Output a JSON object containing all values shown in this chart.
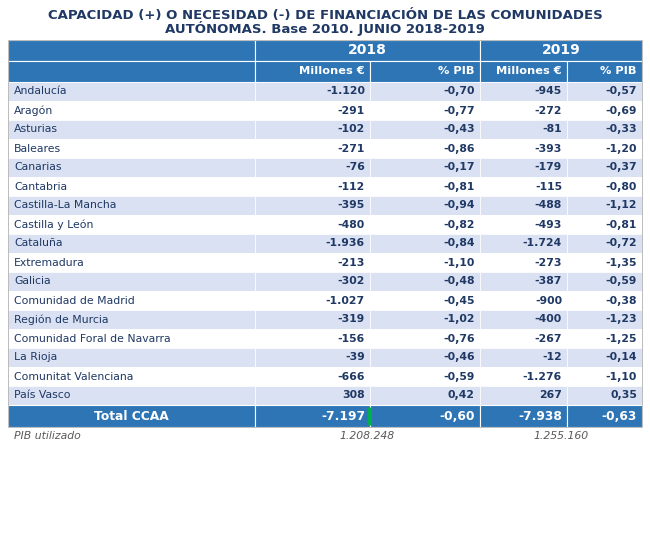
{
  "title_line1": "CAPACIDAD (+) O NECESIDAD (-) DE FINANCIACIÓN DE LAS COMUNIDADES",
  "title_line2": "AUTÓNOMAS. Base 2010. JUNIO 2018-2019",
  "sub_headers": [
    "",
    "Millones €",
    "% PIB",
    "Millones €",
    "% PIB"
  ],
  "rows": [
    [
      "Andalucía",
      "-1.120",
      "-0,70",
      "-945",
      "-0,57"
    ],
    [
      "Aragón",
      "-291",
      "-0,77",
      "-272",
      "-0,69"
    ],
    [
      "Asturias",
      "-102",
      "-0,43",
      "-81",
      "-0,33"
    ],
    [
      "Baleares",
      "-271",
      "-0,86",
      "-393",
      "-1,20"
    ],
    [
      "Canarias",
      "-76",
      "-0,17",
      "-179",
      "-0,37"
    ],
    [
      "Cantabria",
      "-112",
      "-0,81",
      "-115",
      "-0,80"
    ],
    [
      "Castilla-La Mancha",
      "-395",
      "-0,94",
      "-488",
      "-1,12"
    ],
    [
      "Castilla y León",
      "-480",
      "-0,82",
      "-493",
      "-0,81"
    ],
    [
      "Cataluña",
      "-1.936",
      "-0,84",
      "-1.724",
      "-0,72"
    ],
    [
      "Extremadura",
      "-213",
      "-1,10",
      "-273",
      "-1,35"
    ],
    [
      "Galicia",
      "-302",
      "-0,48",
      "-387",
      "-0,59"
    ],
    [
      "Comunidad de Madrid",
      "-1.027",
      "-0,45",
      "-900",
      "-0,38"
    ],
    [
      "Región de Murcia",
      "-319",
      "-1,02",
      "-400",
      "-1,23"
    ],
    [
      "Comunidad Foral de Navarra",
      "-156",
      "-0,76",
      "-267",
      "-1,25"
    ],
    [
      "La Rioja",
      "-39",
      "-0,46",
      "-12",
      "-0,14"
    ],
    [
      "Comunitat Valenciana",
      "-666",
      "-0,59",
      "-1.276",
      "-1,10"
    ],
    [
      "País Vasco",
      "308",
      "0,42",
      "267",
      "0,35"
    ]
  ],
  "total_row": [
    "Total CCAA",
    "-7.197",
    "-0,60",
    "-7.938",
    "-0,63"
  ],
  "pib_row": [
    "PIB utilizado",
    "1.208.248",
    "1.255.160"
  ],
  "header_bg": "#2E75B6",
  "header_text": "#FFFFFF",
  "row_bg_even": "#FFFFFF",
  "row_bg_odd": "#D9E1F2",
  "total_bg": "#2E75B6",
  "total_text": "#FFFFFF",
  "title_color": "#1F3864",
  "data_text_color": "#1F3864",
  "pib_text_color": "#595959",
  "green_accent": "#00B050"
}
